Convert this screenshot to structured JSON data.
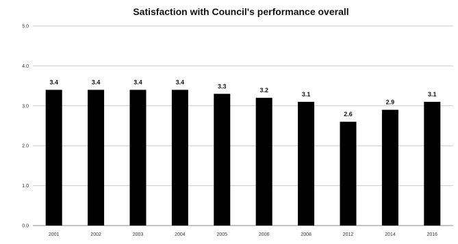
{
  "chart_data": {
    "type": "bar",
    "title": "Satisfaction with Council's performance overall",
    "xlabel": "",
    "ylabel": "",
    "categories": [
      "2001",
      "2002",
      "2003",
      "2004",
      "2005",
      "2006",
      "2008",
      "2012",
      "2014",
      "2016"
    ],
    "values": [
      3.4,
      3.4,
      3.4,
      3.4,
      3.3,
      3.2,
      3.1,
      2.6,
      2.9,
      3.1
    ],
    "data_labels": [
      "3.4",
      "3.4",
      "3.4",
      "3.4",
      "3.3",
      "3.2",
      "3.1",
      "2.6",
      "2.9",
      "3.1"
    ],
    "ylim": [
      0,
      5
    ],
    "y_ticks": [
      "0.0",
      "1.0",
      "2.0",
      "3.0",
      "4.0",
      "5.0"
    ],
    "grid": true,
    "legend": "none",
    "bar_color": "#000000"
  }
}
